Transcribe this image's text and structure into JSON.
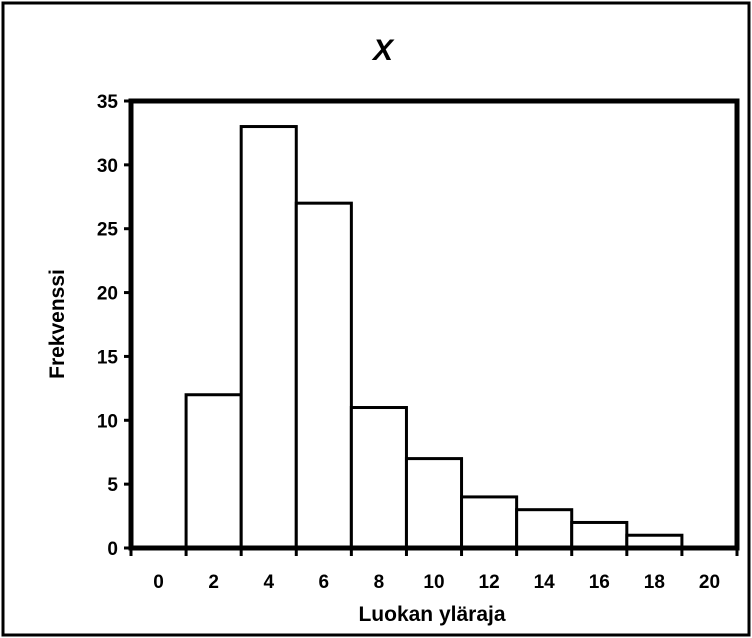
{
  "chart_data": {
    "type": "bar",
    "title": "X",
    "xlabel": "Luokan yläraja",
    "ylabel": "Frekvenssi",
    "categories": [
      "0",
      "2",
      "4",
      "6",
      "8",
      "10",
      "12",
      "14",
      "16",
      "18",
      "20"
    ],
    "values": [
      0,
      12,
      33,
      27,
      11,
      7,
      4,
      3,
      2,
      1,
      0
    ],
    "ylim": [
      0,
      35
    ],
    "yticks": [
      "0",
      "5",
      "10",
      "15",
      "20",
      "25",
      "30",
      "35"
    ],
    "grid": false,
    "bar_fill": "#ffffff",
    "bar_stroke": "#000000"
  }
}
